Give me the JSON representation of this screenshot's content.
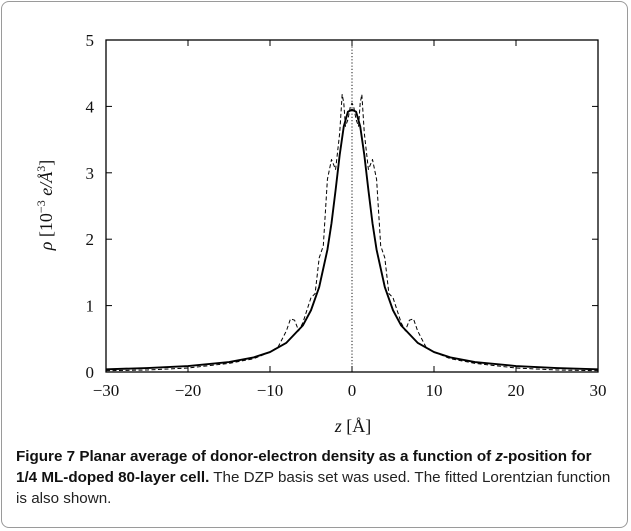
{
  "chart_data": {
    "type": "line",
    "xlabel": {
      "italic": "z",
      "rest": " [Å]"
    },
    "ylabel": {
      "symbol": "ρ",
      "rest": " [10",
      "exp": "−3",
      "unit": " e/Å",
      "unit_exp": "3",
      "close": "]"
    },
    "xlim": [
      -30,
      30
    ],
    "ylim": [
      0,
      5
    ],
    "xticks": [
      -30,
      -20,
      -10,
      0,
      10,
      20,
      30
    ],
    "xtick_labels": [
      "−30",
      "−20",
      "−10",
      "0",
      "10",
      "20",
      "30"
    ],
    "yticks": [
      0,
      1,
      2,
      3,
      4,
      5
    ],
    "ytick_labels": [
      "0",
      "1",
      "2",
      "3",
      "4",
      "5"
    ],
    "reference_line": {
      "x": 0,
      "style": "dotted"
    },
    "series": [
      {
        "style": "solid",
        "x": [
          -30,
          -25,
          -20,
          -15,
          -12,
          -10,
          -8,
          -6,
          -5,
          -4,
          -3,
          -2.5,
          -2,
          -1.5,
          -1,
          -0.5,
          0,
          0.5,
          1,
          1.5,
          2,
          2.5,
          3,
          4,
          5,
          6,
          8,
          10,
          12,
          15,
          20,
          25,
          30
        ],
        "y": [
          0.04,
          0.06,
          0.09,
          0.15,
          0.22,
          0.3,
          0.44,
          0.7,
          0.93,
          1.28,
          1.84,
          2.24,
          2.74,
          3.27,
          3.7,
          3.92,
          3.95,
          3.92,
          3.7,
          3.27,
          2.74,
          2.24,
          1.84,
          1.28,
          0.93,
          0.7,
          0.44,
          0.3,
          0.22,
          0.15,
          0.09,
          0.06,
          0.04
        ]
      },
      {
        "style": "dashed",
        "x": [
          -30,
          -25,
          -20,
          -15,
          -12,
          -10,
          -9,
          -8,
          -7.5,
          -7,
          -6.5,
          -6,
          -5,
          -4.5,
          -4,
          -3.5,
          -3,
          -2.5,
          -2,
          -1.5,
          -1.2,
          -1,
          -0.8,
          -0.5,
          -0.2,
          0,
          0.2,
          0.5,
          0.8,
          1,
          1.2,
          1.5,
          2,
          2.5,
          3,
          3.5,
          4,
          4.5,
          5,
          6,
          6.5,
          7,
          7.5,
          8,
          9,
          10,
          12,
          15,
          20,
          25,
          30
        ],
        "y": [
          0.02,
          0.03,
          0.06,
          0.13,
          0.2,
          0.3,
          0.38,
          0.62,
          0.8,
          0.78,
          0.62,
          0.74,
          1.12,
          1.18,
          1.72,
          1.9,
          2.9,
          3.2,
          3.05,
          3.6,
          4.18,
          4.05,
          3.7,
          3.8,
          4.0,
          4.05,
          4.0,
          3.8,
          3.7,
          4.05,
          4.18,
          3.6,
          3.05,
          3.2,
          2.9,
          1.9,
          1.72,
          1.18,
          1.12,
          0.74,
          0.62,
          0.78,
          0.8,
          0.62,
          0.38,
          0.3,
          0.2,
          0.13,
          0.06,
          0.03,
          0.02
        ]
      }
    ]
  },
  "caption": {
    "figure_label": "Figure 7",
    "title_part1": "Planar average of donor-electron density as a function of ",
    "title_italic": "z",
    "title_part2": "-position for 1/4 ML-doped 80-layer cell.",
    "body": " The DZP basis set was used. The fitted Lorentzian function is also shown."
  }
}
